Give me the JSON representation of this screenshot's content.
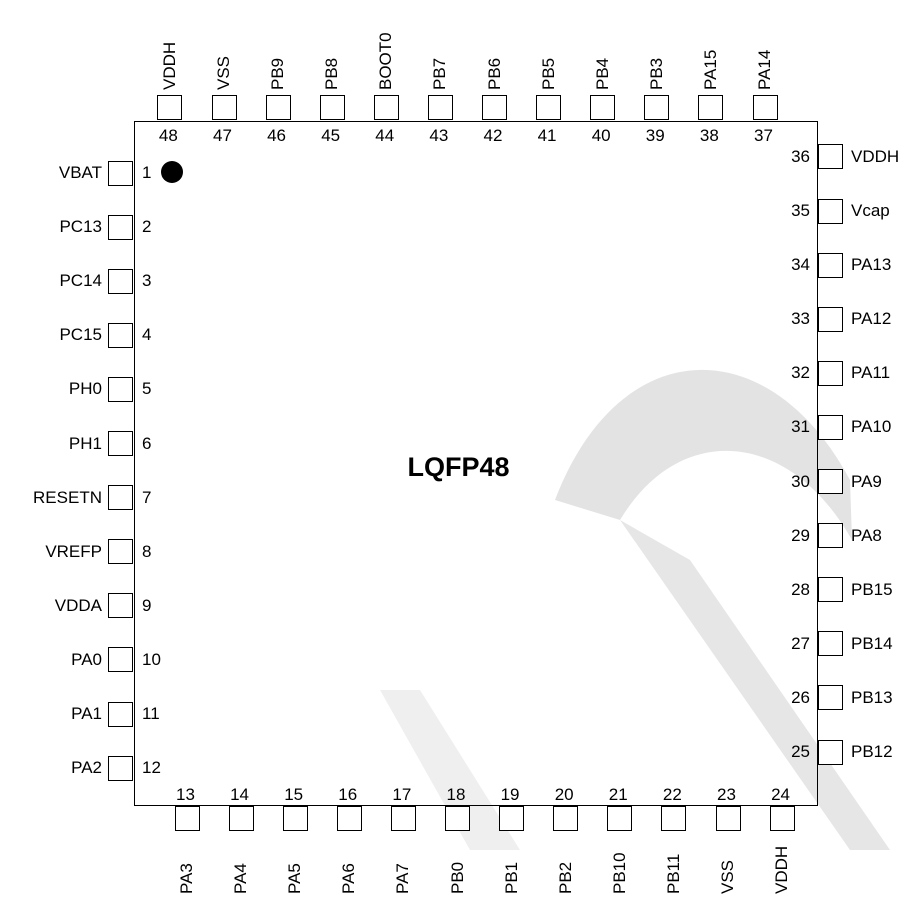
{
  "package_label": "LQFP48",
  "pins": {
    "left": [
      {
        "num": "1",
        "name": "VBAT"
      },
      {
        "num": "2",
        "name": "PC13"
      },
      {
        "num": "3",
        "name": "PC14"
      },
      {
        "num": "4",
        "name": "PC15"
      },
      {
        "num": "5",
        "name": "PH0"
      },
      {
        "num": "6",
        "name": "PH1"
      },
      {
        "num": "7",
        "name": "RESETN"
      },
      {
        "num": "8",
        "name": "VREFP"
      },
      {
        "num": "9",
        "name": "VDDA"
      },
      {
        "num": "10",
        "name": "PA0"
      },
      {
        "num": "11",
        "name": "PA1"
      },
      {
        "num": "12",
        "name": "PA2"
      }
    ],
    "bottom": [
      {
        "num": "13",
        "name": "PA3"
      },
      {
        "num": "14",
        "name": "PA4"
      },
      {
        "num": "15",
        "name": "PA5"
      },
      {
        "num": "16",
        "name": "PA6"
      },
      {
        "num": "17",
        "name": "PA7"
      },
      {
        "num": "18",
        "name": "PB0"
      },
      {
        "num": "19",
        "name": "PB1"
      },
      {
        "num": "20",
        "name": "PB2"
      },
      {
        "num": "21",
        "name": "PB10"
      },
      {
        "num": "22",
        "name": "PB11"
      },
      {
        "num": "23",
        "name": "VSS"
      },
      {
        "num": "24",
        "name": "VDDH"
      }
    ],
    "right": [
      {
        "num": "25",
        "name": "PB12"
      },
      {
        "num": "26",
        "name": "PB13"
      },
      {
        "num": "27",
        "name": "PB14"
      },
      {
        "num": "28",
        "name": "PB15"
      },
      {
        "num": "29",
        "name": "PA8"
      },
      {
        "num": "30",
        "name": "PA9"
      },
      {
        "num": "31",
        "name": "PA10"
      },
      {
        "num": "32",
        "name": "PA11"
      },
      {
        "num": "33",
        "name": "PA12"
      },
      {
        "num": "34",
        "name": "PA13"
      },
      {
        "num": "35",
        "name": "Vcap"
      },
      {
        "num": "36",
        "name": "VDDH"
      }
    ],
    "top": [
      {
        "num": "37",
        "name": "PA14"
      },
      {
        "num": "38",
        "name": "PA15"
      },
      {
        "num": "39",
        "name": "PB3"
      },
      {
        "num": "40",
        "name": "PB4"
      },
      {
        "num": "41",
        "name": "PB5"
      },
      {
        "num": "42",
        "name": "PB6"
      },
      {
        "num": "43",
        "name": "PB7"
      },
      {
        "num": "44",
        "name": "BOOT0"
      },
      {
        "num": "45",
        "name": "PB8"
      },
      {
        "num": "46",
        "name": "PB9"
      },
      {
        "num": "47",
        "name": "VSS"
      },
      {
        "num": "48",
        "name": "VDDH"
      }
    ]
  },
  "colors": {
    "line": "#000000",
    "watermark": "#d9d9d9"
  }
}
